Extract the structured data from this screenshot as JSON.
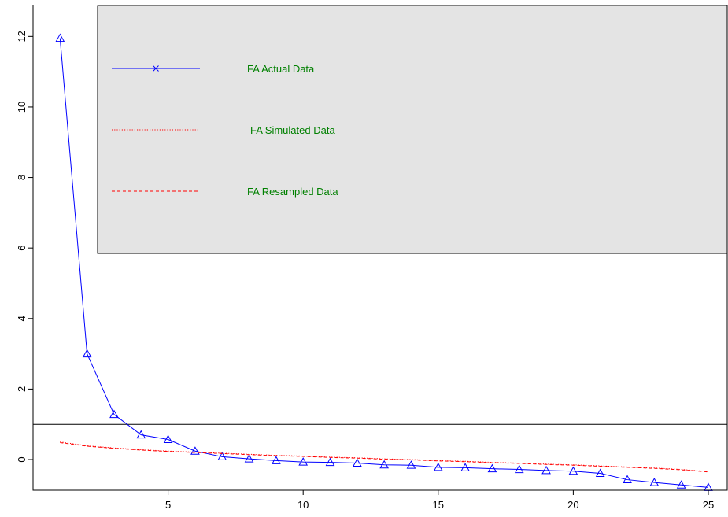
{
  "chart_data": {
    "type": "line",
    "title": "",
    "xlabel": "",
    "ylabel": "",
    "xlim": [
      0,
      25.7
    ],
    "ylim": [
      -0.87,
      12.9
    ],
    "x_ticks": [
      5,
      10,
      15,
      20,
      25
    ],
    "y_ticks": [
      0,
      2,
      4,
      6,
      8,
      10,
      12
    ],
    "reference_line_y": 1,
    "grid": false,
    "legend_position": "top-right",
    "legend_background": "#e4e4e4",
    "series": [
      {
        "name": "FA  Actual Data",
        "color": "#0000ff",
        "line_style": "solid",
        "marker": "triangle",
        "legend_marker": "x",
        "x": [
          1,
          2,
          3,
          4,
          5,
          6,
          7,
          8,
          9,
          10,
          11,
          12,
          13,
          14,
          15,
          16,
          17,
          18,
          19,
          20,
          21,
          22,
          23,
          24,
          25
        ],
        "values": [
          11.95,
          3.0,
          1.28,
          0.7,
          0.57,
          0.24,
          0.08,
          0.02,
          -0.03,
          -0.07,
          -0.08,
          -0.1,
          -0.15,
          -0.16,
          -0.22,
          -0.23,
          -0.26,
          -0.28,
          -0.31,
          -0.33,
          -0.39,
          -0.57,
          -0.65,
          -0.72,
          -0.79
        ]
      },
      {
        "name": "FA  Simulated Data",
        "color": "#ff0000",
        "line_style": "dotted",
        "x": [
          1,
          2,
          3,
          4,
          5,
          6,
          7,
          8,
          9,
          10,
          11,
          12,
          13,
          14,
          15,
          16,
          17,
          18,
          19,
          20,
          21,
          22,
          23,
          24,
          25
        ],
        "values": [
          0.5,
          0.39,
          0.33,
          0.28,
          0.24,
          0.21,
          0.18,
          0.15,
          0.12,
          0.1,
          0.07,
          0.05,
          0.02,
          0.0,
          -0.03,
          -0.05,
          -0.08,
          -0.1,
          -0.13,
          -0.15,
          -0.18,
          -0.21,
          -0.24,
          -0.28,
          -0.34
        ]
      },
      {
        "name": "FA  Resampled Data",
        "color": "#ff0000",
        "line_style": "dashed",
        "x": [
          1,
          2,
          3,
          4,
          5,
          6,
          7,
          8,
          9,
          10,
          11,
          12,
          13,
          14,
          15,
          16,
          17,
          18,
          19,
          20,
          21,
          22,
          23,
          24,
          25
        ],
        "values": [
          0.48,
          0.38,
          0.32,
          0.27,
          0.23,
          0.2,
          0.17,
          0.14,
          0.11,
          0.09,
          0.06,
          0.04,
          0.01,
          -0.01,
          -0.04,
          -0.06,
          -0.09,
          -0.11,
          -0.14,
          -0.16,
          -0.19,
          -0.22,
          -0.25,
          -0.29,
          -0.35
        ]
      }
    ],
    "legend_text_color": "#008000"
  }
}
